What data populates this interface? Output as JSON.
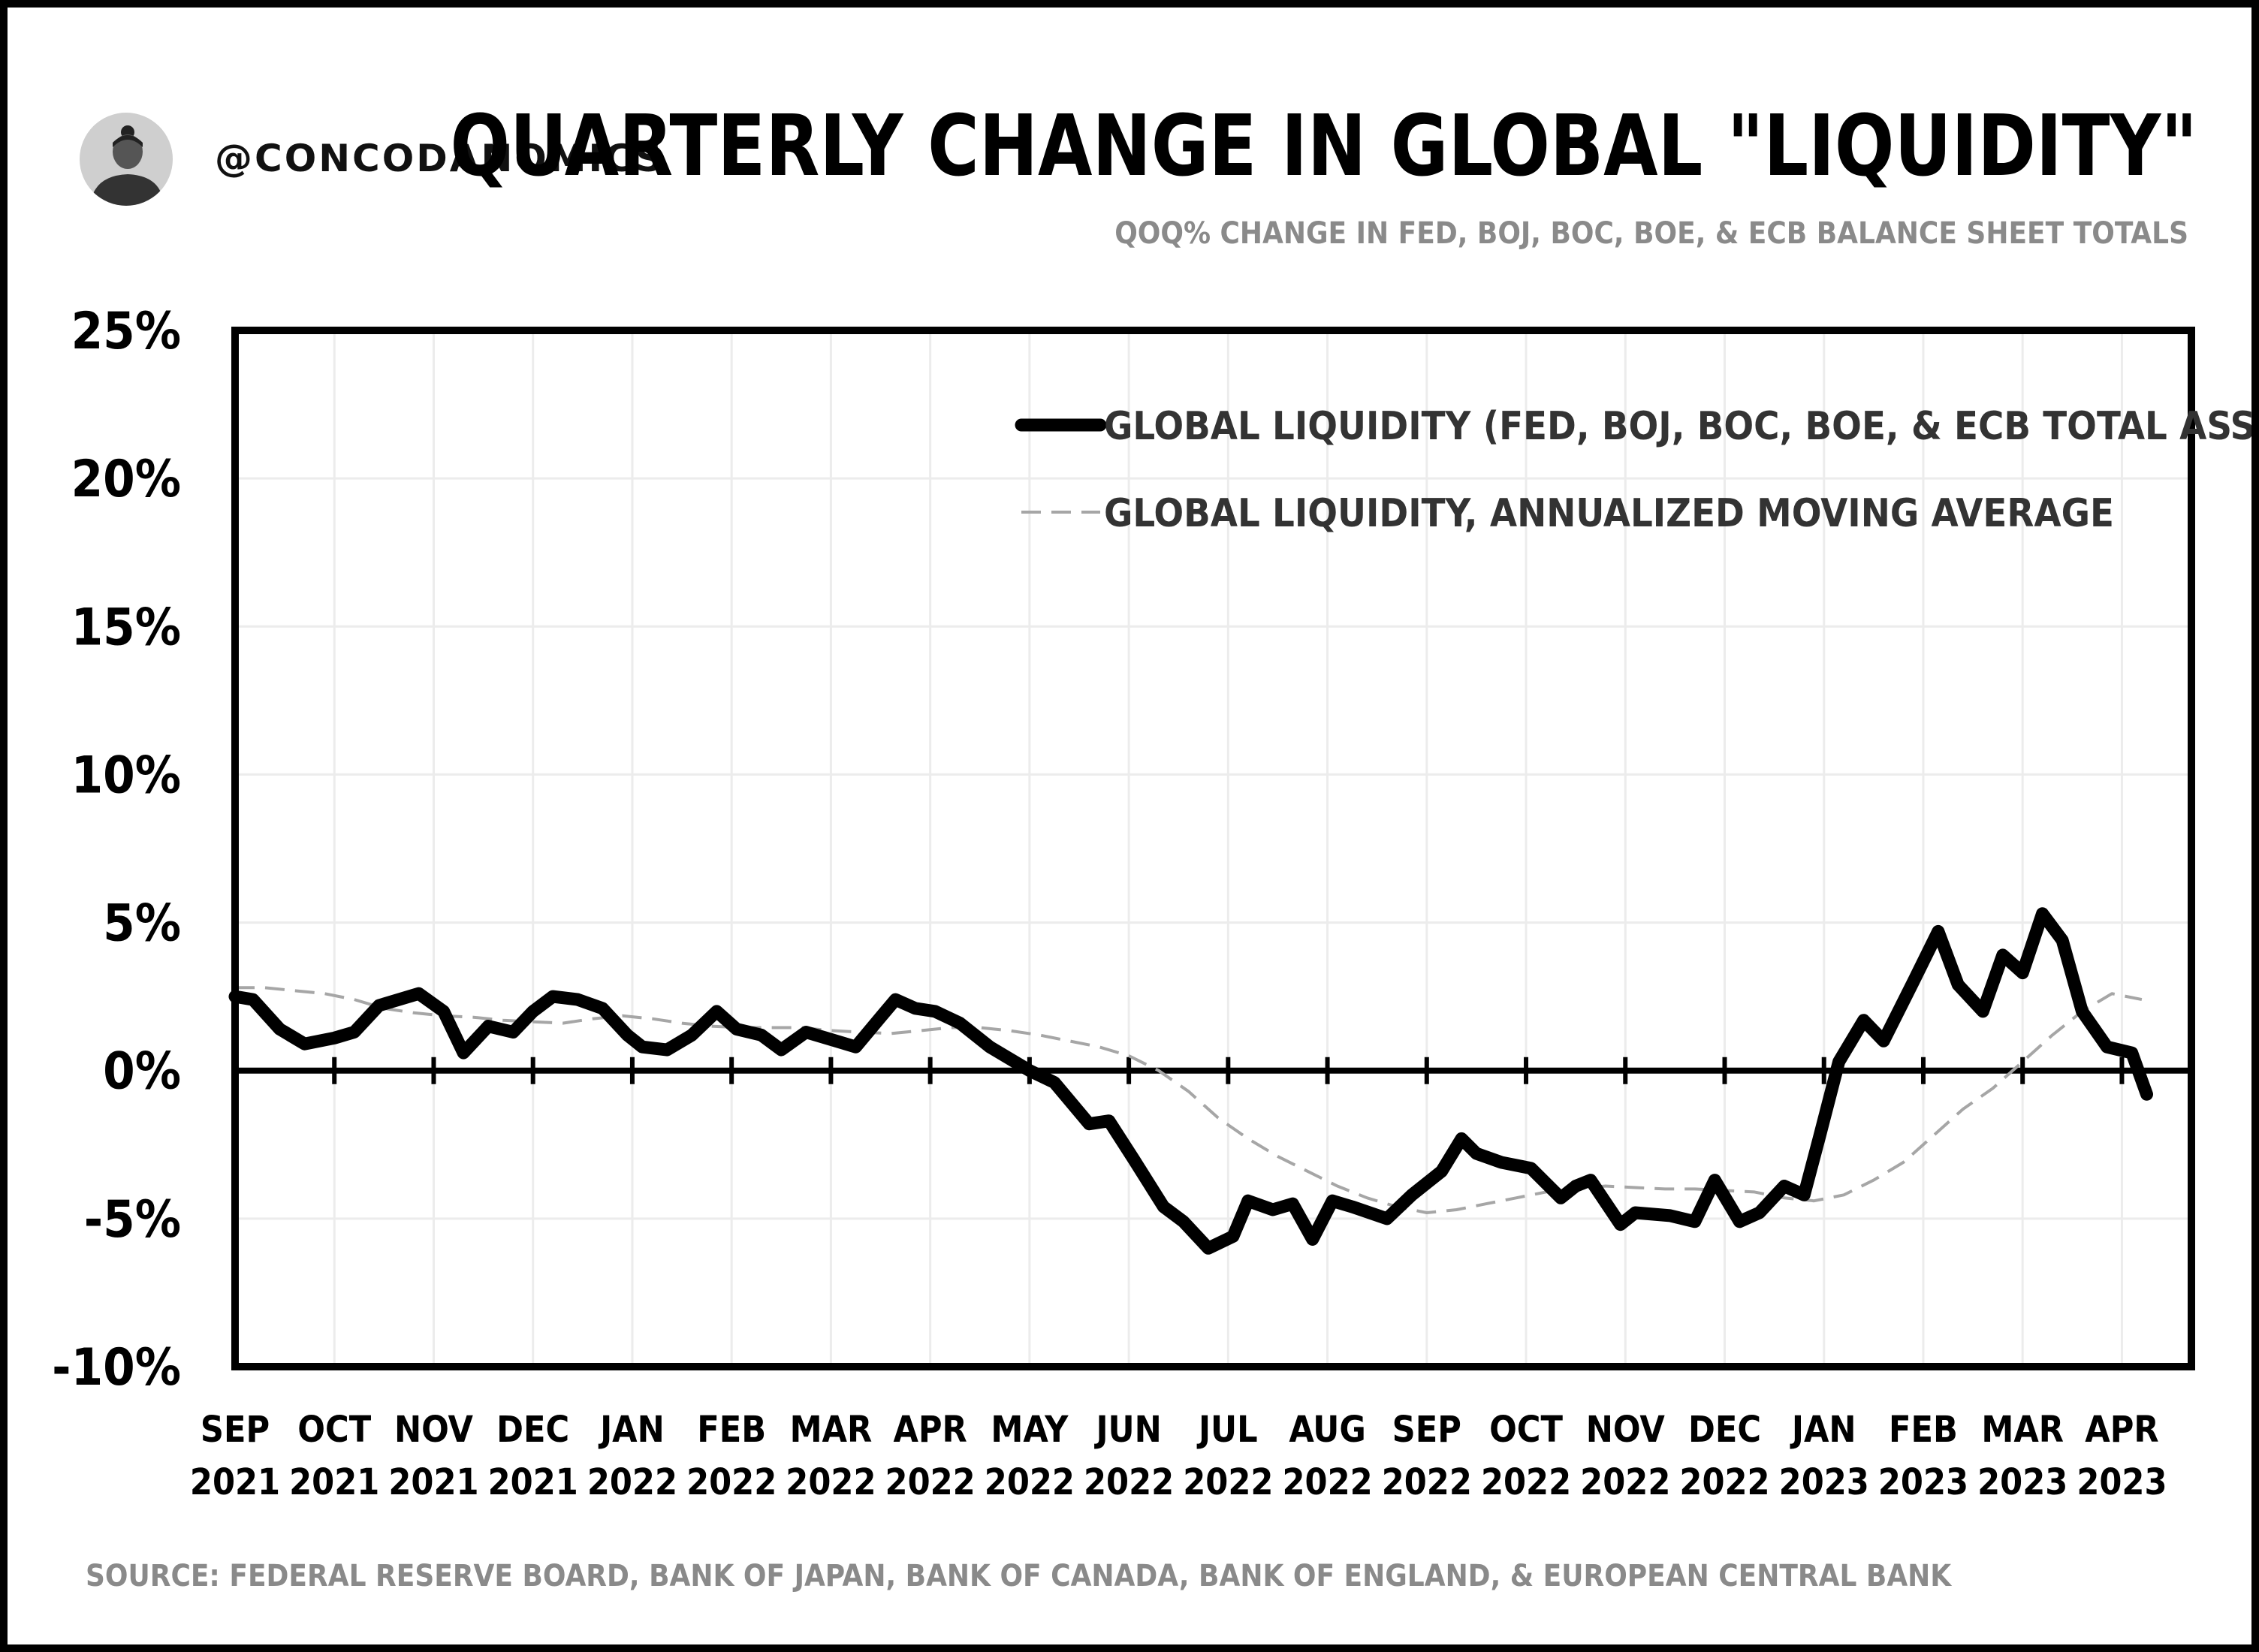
{
  "header": {
    "handle": "@CONCODANOMICS",
    "title": "QUARTERLY CHANGE IN GLOBAL \"LIQUIDITY\"",
    "subtitle": "QOQ% CHANGE IN FED, BOJ, BOC, BOE, & ECB BALANCE SHEET TOTALS"
  },
  "footer": {
    "source": "SOURCE: FEDERAL RESERVE BOARD, BANK OF JAPAN, BANK OF CANADA, BANK OF ENGLAND, & EUROPEAN CENTRAL BANK"
  },
  "colors": {
    "main_line": "#000000",
    "moving_average": "#a6a6a6",
    "grid": "#ececec",
    "muted_text": "#8a8a8a"
  },
  "chart_data": {
    "type": "line",
    "title": "QUARTERLY CHANGE IN GLOBAL \"LIQUIDITY\"",
    "subtitle": "QOQ% CHANGE IN FED, BOJ, BOC, BOE, & ECB BALANCE SHEET TOTALS",
    "ylim": [
      -10,
      25
    ],
    "yticks": [
      25,
      20,
      15,
      10,
      5,
      0,
      -5,
      -10
    ],
    "ytick_labels": [
      "25%",
      "20%",
      "15%",
      "10%",
      "5%",
      "0%",
      "-5%",
      "-10%"
    ],
    "xlim": [
      0,
      19.7
    ],
    "x_ticks": [
      {
        "month": "SEP",
        "year": "2021"
      },
      {
        "month": "OCT",
        "year": "2021"
      },
      {
        "month": "NOV",
        "year": "2021"
      },
      {
        "month": "DEC",
        "year": "2021"
      },
      {
        "month": "JAN",
        "year": "2022"
      },
      {
        "month": "FEB",
        "year": "2022"
      },
      {
        "month": "MAR",
        "year": "2022"
      },
      {
        "month": "APR",
        "year": "2022"
      },
      {
        "month": "MAY",
        "year": "2022"
      },
      {
        "month": "JUN",
        "year": "2022"
      },
      {
        "month": "JUL",
        "year": "2022"
      },
      {
        "month": "AUG",
        "year": "2022"
      },
      {
        "month": "SEP",
        "year": "2022"
      },
      {
        "month": "OCT",
        "year": "2022"
      },
      {
        "month": "NOV",
        "year": "2022"
      },
      {
        "month": "DEC",
        "year": "2022"
      },
      {
        "month": "JAN",
        "year": "2023"
      },
      {
        "month": "FEB",
        "year": "2023"
      },
      {
        "month": "MAR",
        "year": "2023"
      },
      {
        "month": "APR",
        "year": "2023"
      }
    ],
    "grid": true,
    "legend_position": "top-right",
    "series": [
      {
        "name": "GLOBAL LIQUIDITY (FED, BOJ, BOC, BOE, & ECB TOTAL ASSETS)",
        "style": "solid-thick",
        "x": [
          0.0,
          0.18,
          0.45,
          0.7,
          1.0,
          1.2,
          1.45,
          1.85,
          2.1,
          2.3,
          2.55,
          2.8,
          3.0,
          3.2,
          3.45,
          3.7,
          3.95,
          4.1,
          4.35,
          4.6,
          4.85,
          5.05,
          5.3,
          5.5,
          5.75,
          5.95,
          6.25,
          6.5,
          6.65,
          6.85,
          7.05,
          7.3,
          7.6,
          8.0,
          8.25,
          8.6,
          8.8,
          9.05,
          9.35,
          9.55,
          9.8,
          10.05,
          10.2,
          10.45,
          10.65,
          10.85,
          11.05,
          11.25,
          11.6,
          11.85,
          12.15,
          12.35,
          12.5,
          12.75,
          13.05,
          13.35,
          13.5,
          13.65,
          13.95,
          14.1,
          14.45,
          14.7,
          14.9,
          15.15,
          15.35,
          15.6,
          15.8,
          15.95,
          16.15,
          16.4,
          16.6,
          16.9,
          17.15,
          17.35,
          17.6,
          17.8,
          18.0,
          18.2,
          18.4,
          18.6,
          18.85,
          19.1,
          19.25
        ],
        "y": [
          2.5,
          2.4,
          1.4,
          0.9,
          1.1,
          1.3,
          2.2,
          2.6,
          2.0,
          0.6,
          1.5,
          1.3,
          2.0,
          2.5,
          2.4,
          2.1,
          1.2,
          0.8,
          0.7,
          1.2,
          2.0,
          1.4,
          1.2,
          0.7,
          1.3,
          1.1,
          0.8,
          1.8,
          2.4,
          2.1,
          2.0,
          1.6,
          0.8,
          0.0,
          -0.4,
          -1.8,
          -1.7,
          -3.0,
          -4.6,
          -5.1,
          -6.0,
          -5.6,
          -4.4,
          -4.7,
          -4.5,
          -5.7,
          -4.4,
          -4.6,
          -5.0,
          -4.2,
          -3.4,
          -2.3,
          -2.8,
          -3.1,
          -3.3,
          -4.3,
          -3.9,
          -3.7,
          -5.2,
          -4.8,
          -4.9,
          -5.1,
          -3.7,
          -5.1,
          -4.8,
          -3.9,
          -4.2,
          -2.3,
          0.3,
          1.7,
          1.0,
          3.0,
          4.7,
          2.9,
          2.0,
          3.9,
          3.3,
          5.3,
          4.4,
          2.0,
          0.8,
          0.6,
          -0.8
        ]
      },
      {
        "name": "GLOBAL LIQUIDITY, ANNUALIZED MOVING AVERAGE",
        "style": "dashed-thin",
        "x": [
          0.0,
          0.3,
          0.6,
          0.9,
          1.2,
          1.5,
          1.8,
          2.1,
          2.4,
          2.7,
          3.0,
          3.3,
          3.6,
          3.9,
          4.2,
          4.5,
          4.8,
          5.1,
          5.4,
          5.7,
          6.0,
          6.3,
          6.6,
          6.9,
          7.2,
          7.5,
          7.8,
          8.1,
          8.4,
          8.7,
          9.0,
          9.3,
          9.6,
          9.9,
          10.2,
          10.5,
          10.8,
          11.1,
          11.4,
          11.7,
          12.0,
          12.3,
          12.6,
          12.9,
          13.2,
          13.5,
          13.8,
          14.1,
          14.4,
          14.7,
          15.0,
          15.3,
          15.6,
          15.9,
          16.2,
          16.5,
          16.8,
          17.1,
          17.4,
          17.7,
          18.0,
          18.3,
          18.6,
          18.9,
          19.2
        ],
        "y": [
          2.8,
          2.8,
          2.7,
          2.6,
          2.4,
          2.1,
          1.95,
          1.85,
          1.8,
          1.7,
          1.65,
          1.6,
          1.75,
          1.85,
          1.75,
          1.6,
          1.5,
          1.45,
          1.45,
          1.45,
          1.35,
          1.3,
          1.25,
          1.35,
          1.45,
          1.45,
          1.35,
          1.2,
          1.0,
          0.8,
          0.5,
          0.0,
          -0.7,
          -1.6,
          -2.3,
          -2.9,
          -3.4,
          -3.9,
          -4.3,
          -4.6,
          -4.8,
          -4.7,
          -4.5,
          -4.3,
          -4.1,
          -4.0,
          -3.9,
          -3.95,
          -4.0,
          -4.0,
          -4.05,
          -4.1,
          -4.3,
          -4.4,
          -4.2,
          -3.7,
          -3.1,
          -2.2,
          -1.3,
          -0.6,
          0.3,
          1.2,
          2.0,
          2.6,
          2.4
        ]
      }
    ]
  }
}
